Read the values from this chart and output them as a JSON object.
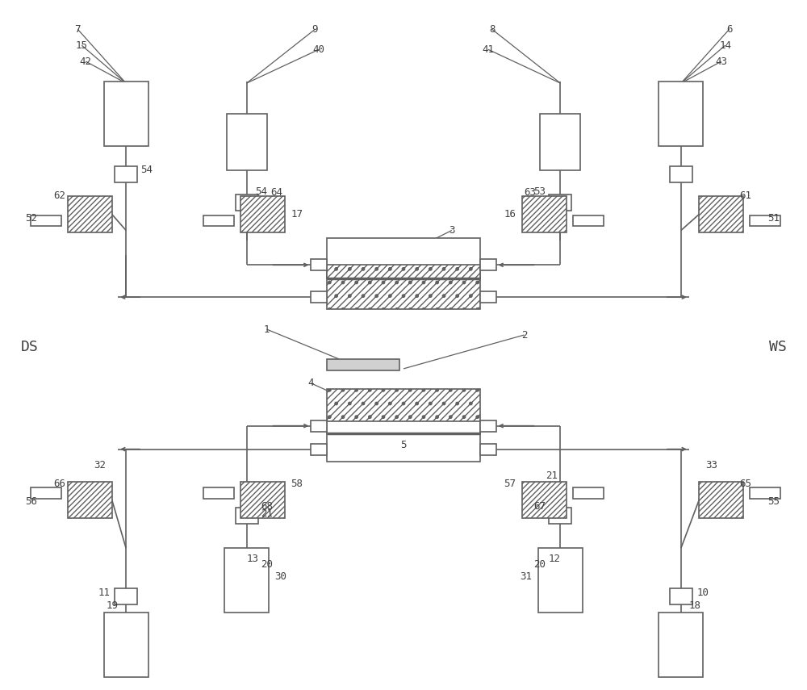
{
  "bg_color": "#ffffff",
  "lc": "#606060",
  "lw": 1.2,
  "figsize": [
    10.0,
    8.55
  ],
  "DS": "DS",
  "WS": "WS"
}
